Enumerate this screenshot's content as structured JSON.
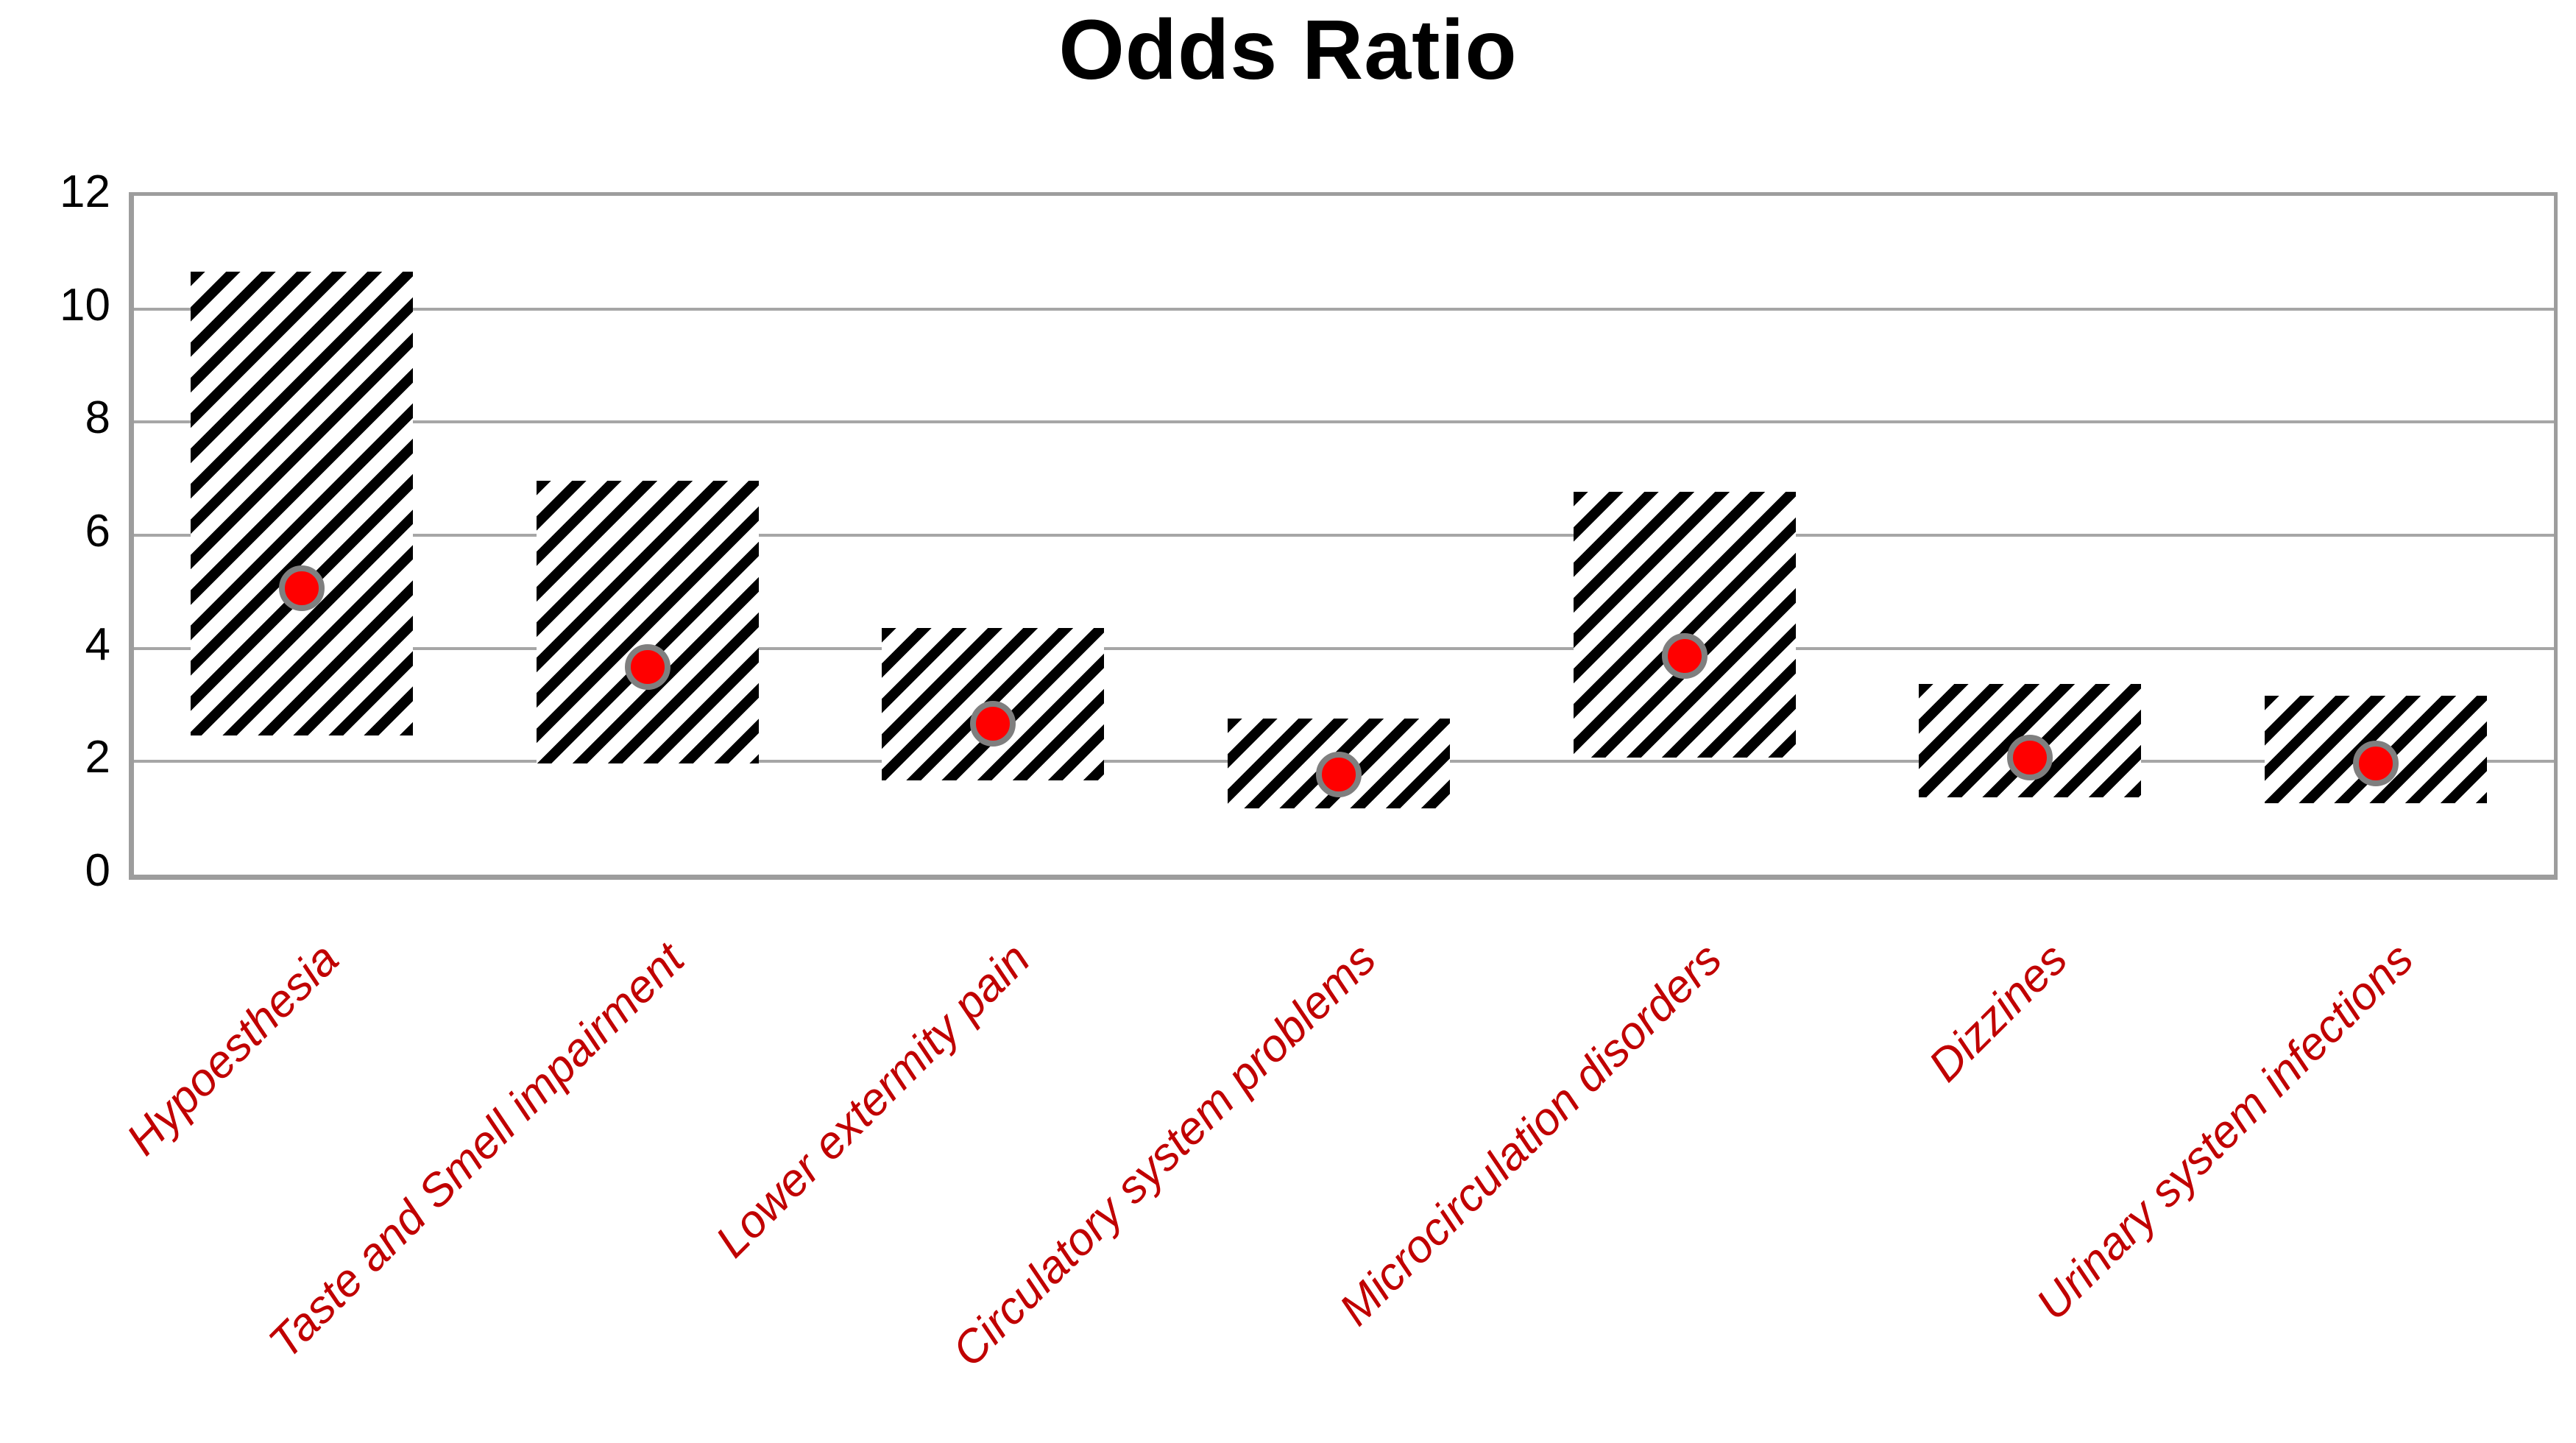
{
  "title": "Odds Ratio",
  "colors": {
    "title_text": "#000000",
    "axis_tick_text": "#000000",
    "category_label_text": "#c00000",
    "gridline": "#a6a6a6",
    "plot_border": "#9d9d9d",
    "bar_hatch": "#000000",
    "bar_background": "#ffffff",
    "dot_fill": "#ff0000",
    "dot_ring": "#7f7f7f"
  },
  "axis": {
    "y_tick_labels": [
      "0",
      "2",
      "4",
      "6",
      "8",
      "10",
      "12"
    ]
  },
  "chart_data": {
    "type": "bar",
    "subtype": "floating-range-bars-with-point-markers",
    "title": "Odds Ratio",
    "categories": [
      "Hypoesthesia",
      "Taste and Smell impairment",
      "Lower extermity pain",
      "Circulatory system problems",
      "Microcirculation disorders",
      "Dizzines",
      "Urinary system infections"
    ],
    "series": [
      {
        "name": "range_low",
        "values": [
          2.4,
          1.9,
          1.6,
          1.1,
          2.0,
          1.3,
          1.2
        ]
      },
      {
        "name": "range_high",
        "values": [
          10.6,
          6.9,
          4.3,
          2.7,
          6.7,
          3.3,
          3.1
        ]
      },
      {
        "name": "point_estimate",
        "values": [
          5.0,
          3.6,
          2.6,
          1.7,
          3.8,
          2.0,
          1.9
        ]
      }
    ],
    "xlabel": "",
    "ylabel": "",
    "ylim": [
      0,
      12
    ],
    "yticks": [
      0,
      2,
      4,
      6,
      8,
      10,
      12
    ],
    "grid": true,
    "legend_position": "none",
    "bar_hatch_style": "diagonal-stripes-45deg",
    "marker_style": "red-circle-gray-ring"
  }
}
